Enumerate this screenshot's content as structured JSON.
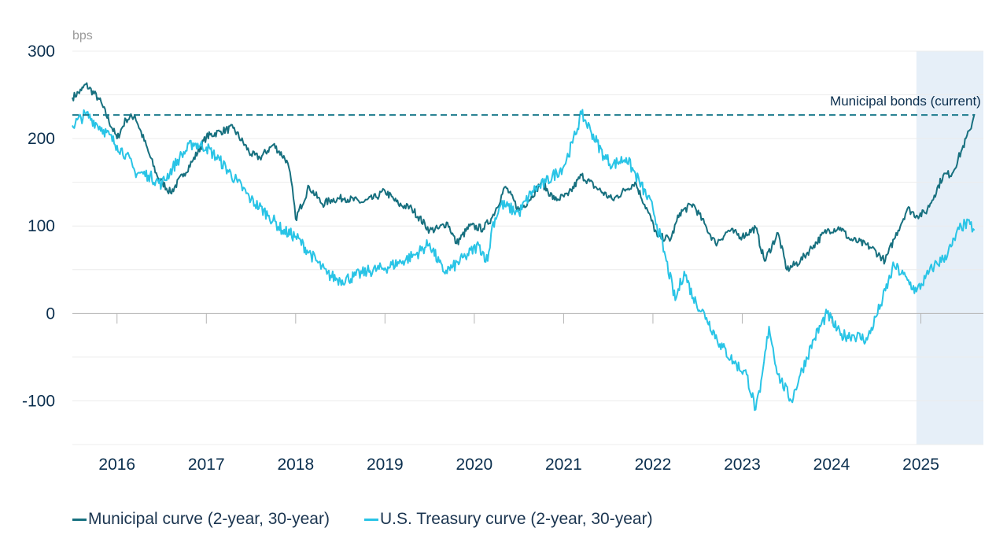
{
  "chart_data": {
    "type": "line",
    "y_unit": "bps",
    "ylim": [
      -150,
      300
    ],
    "y_ticks": [
      300,
      200,
      100,
      0,
      -100
    ],
    "x_ticks": [
      "2016",
      "2017",
      "2018",
      "2019",
      "2020",
      "2021",
      "2022",
      "2023",
      "2024",
      "2025"
    ],
    "xlim": [
      2015.5,
      2025.7
    ],
    "grid": true,
    "highlight_region": {
      "from": 2024.95,
      "to": 2025.7,
      "color": "#e6eff8"
    },
    "reference_line": {
      "label": "Municipal bonds (current)",
      "value": 227,
      "color": "#1b7a8c"
    },
    "legend_position": "bottom",
    "series": [
      {
        "name": "Municipal curve (2-year, 30-year)",
        "color": "#17707f",
        "x": [
          2015.5,
          2015.6,
          2015.65,
          2015.8,
          2016.0,
          2016.1,
          2016.2,
          2016.35,
          2016.45,
          2016.6,
          2016.75,
          2016.85,
          2017.0,
          2017.15,
          2017.3,
          2017.5,
          2017.6,
          2017.75,
          2017.9,
          2017.95,
          2018.0,
          2018.15,
          2018.3,
          2018.4,
          2018.55,
          2018.75,
          2018.9,
          2019.0,
          2019.15,
          2019.3,
          2019.5,
          2019.6,
          2019.7,
          2019.8,
          2019.95,
          2020.1,
          2020.2,
          2020.35,
          2020.5,
          2020.6,
          2020.75,
          2020.9,
          2021.05,
          2021.2,
          2021.35,
          2021.55,
          2021.7,
          2021.8,
          2021.95,
          2022.05,
          2022.2,
          2022.3,
          2022.45,
          2022.6,
          2022.7,
          2022.85,
          2023.0,
          2023.15,
          2023.25,
          2023.4,
          2023.5,
          2023.65,
          2023.8,
          2023.95,
          2024.1,
          2024.2,
          2024.3,
          2024.45,
          2024.6,
          2024.7,
          2024.85,
          2024.95,
          2025.05,
          2025.15,
          2025.25,
          2025.35,
          2025.45,
          2025.55,
          2025.6
        ],
        "values": [
          247,
          255,
          262,
          245,
          200,
          222,
          226,
          185,
          157,
          138,
          160,
          175,
          202,
          208,
          212,
          182,
          178,
          193,
          175,
          152,
          108,
          145,
          125,
          130,
          132,
          127,
          133,
          140,
          125,
          120,
          95,
          97,
          104,
          80,
          100,
          97,
          110,
          145,
          118,
          128,
          150,
          130,
          135,
          158,
          145,
          130,
          142,
          150,
          115,
          88,
          85,
          115,
          125,
          98,
          80,
          95,
          88,
          98,
          60,
          92,
          50,
          60,
          78,
          95,
          98,
          85,
          82,
          75,
          60,
          85,
          120,
          112,
          115,
          135,
          158,
          160,
          185,
          210,
          228
        ]
      },
      {
        "name": "U.S. Treasury curve (2-year, 30-year)",
        "color": "#29c4e6",
        "x": [
          2015.5,
          2015.65,
          2015.85,
          2016.0,
          2016.1,
          2016.2,
          2016.35,
          2016.5,
          2016.7,
          2016.85,
          2017.0,
          2017.15,
          2017.35,
          2017.5,
          2017.7,
          2017.85,
          2018.0,
          2018.15,
          2018.35,
          2018.5,
          2018.65,
          2018.8,
          2019.0,
          2019.2,
          2019.35,
          2019.5,
          2019.65,
          2019.75,
          2019.9,
          2020.05,
          2020.15,
          2020.2,
          2020.3,
          2020.5,
          2020.65,
          2020.8,
          2021.0,
          2021.1,
          2021.2,
          2021.3,
          2021.45,
          2021.55,
          2021.7,
          2021.85,
          2022.0,
          2022.15,
          2022.25,
          2022.35,
          2022.45,
          2022.6,
          2022.75,
          2022.9,
          2023.05,
          2023.15,
          2023.2,
          2023.3,
          2023.4,
          2023.55,
          2023.65,
          2023.8,
          2023.95,
          2024.1,
          2024.25,
          2024.4,
          2024.55,
          2024.7,
          2024.85,
          2024.95,
          2025.05,
          2025.15,
          2025.25,
          2025.35,
          2025.45,
          2025.55,
          2025.6
        ],
        "values": [
          215,
          228,
          210,
          192,
          182,
          162,
          158,
          148,
          178,
          195,
          190,
          175,
          150,
          130,
          112,
          95,
          88,
          70,
          45,
          38,
          42,
          48,
          52,
          60,
          68,
          80,
          48,
          52,
          65,
          78,
          60,
          100,
          125,
          115,
          140,
          150,
          168,
          195,
          228,
          210,
          180,
          170,
          178,
          150,
          120,
          60,
          15,
          48,
          18,
          -5,
          -35,
          -55,
          -70,
          -110,
          -90,
          -15,
          -70,
          -100,
          -70,
          -30,
          0,
          -25,
          -25,
          -30,
          10,
          55,
          38,
          25,
          40,
          55,
          62,
          78,
          100,
          102,
          95
        ]
      }
    ]
  }
}
